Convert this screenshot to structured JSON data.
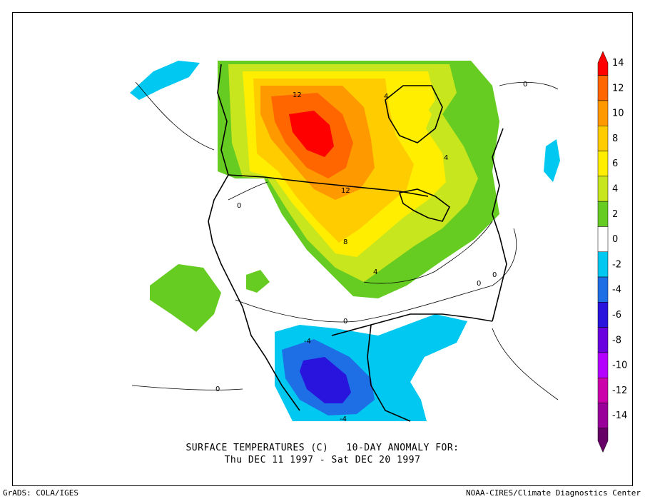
{
  "map": {
    "title_line1": "SURFACE TEMPERATURES (C)   10-DAY ANOMALY FOR:",
    "title_line2": "Thu DEC 11 1997 - Sat DEC 20 1997",
    "credit_left": "GrADS: COLA/IGES",
    "credit_right": "NOAA-CIRES/Climate Diagnostics Center",
    "contour_labels": [
      "12",
      "4",
      "4",
      "12",
      "8",
      "4",
      "0",
      "0",
      "0",
      "-4",
      "-4",
      "0",
      "0",
      "0"
    ]
  },
  "legend": {
    "levels": [
      "14",
      "12",
      "10",
      "8",
      "6",
      "4",
      "2",
      "0",
      "-2",
      "-4",
      "-6",
      "-8",
      "-10",
      "-12",
      "-14"
    ],
    "colors": [
      "#ff0000",
      "#ff6600",
      "#ff9900",
      "#ffcc00",
      "#ffee00",
      "#c8e61e",
      "#66cc22",
      "#ffffff",
      "#00c8f0",
      "#1e6ee6",
      "#2814dc",
      "#6a00e0",
      "#b400ff",
      "#cc00aa",
      "#990099",
      "#660066"
    ]
  },
  "colors": {
    "anom_pos_14": "#ff0000",
    "anom_pos_12": "#ff6600",
    "anom_pos_10": "#ff9900",
    "anom_pos_8": "#ffcc00",
    "anom_pos_6": "#ffee00",
    "anom_pos_4": "#c8e61e",
    "anom_pos_2": "#66cc22",
    "anom_neg_2": "#00c8f0",
    "anom_neg_4": "#1e6ee6",
    "anom_neg_6": "#2814dc"
  }
}
